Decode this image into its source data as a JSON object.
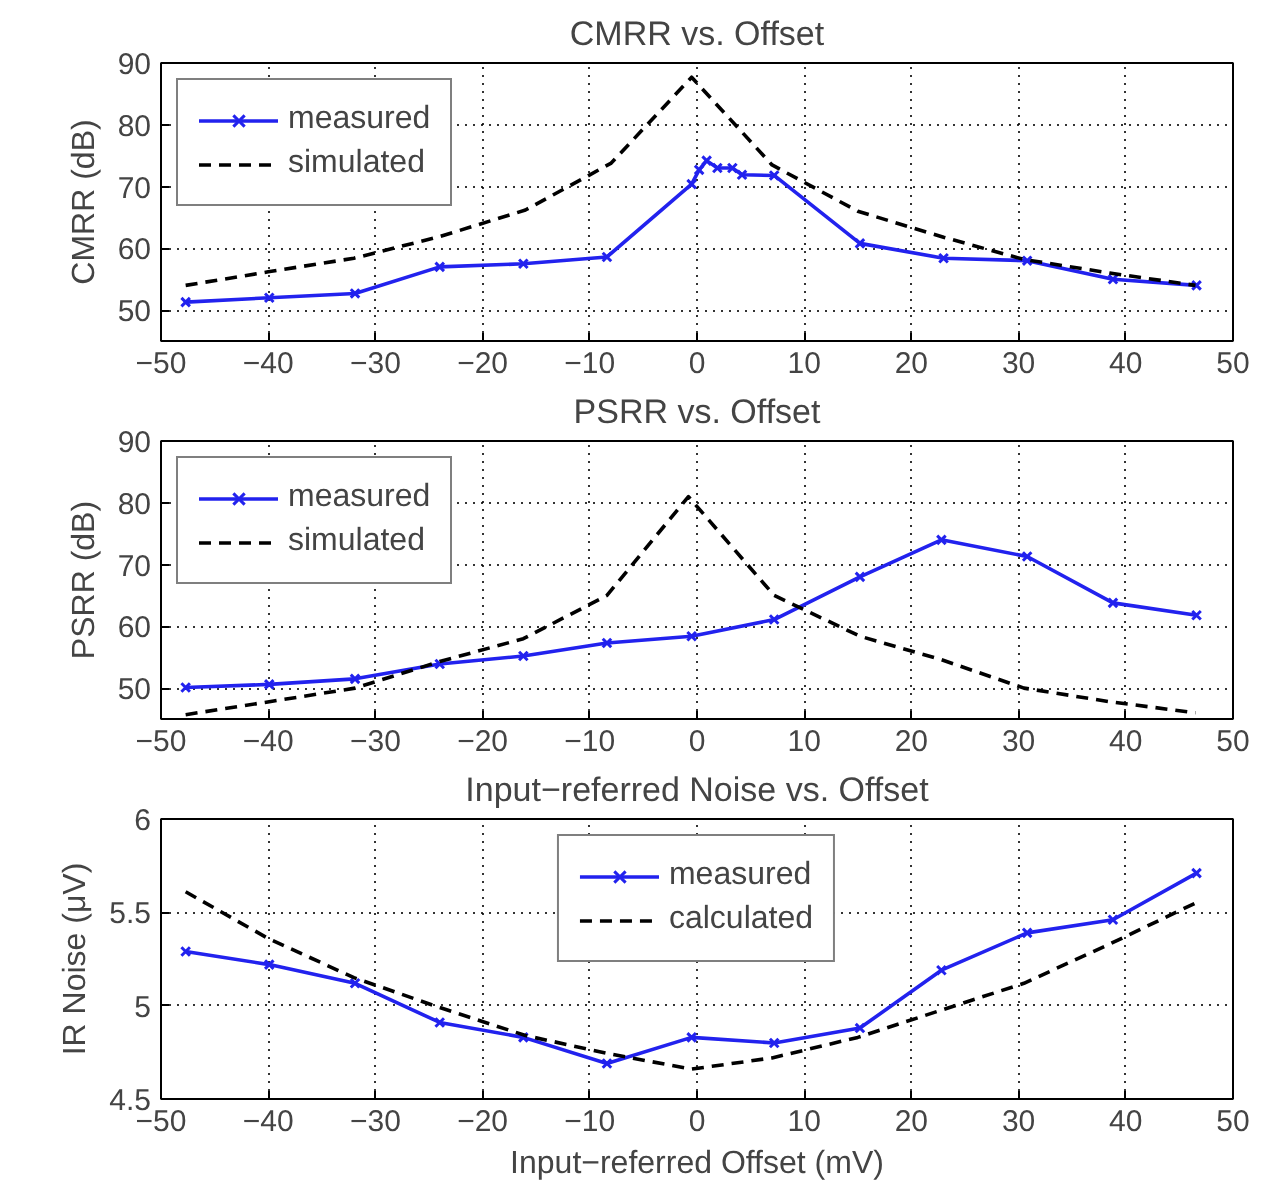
{
  "chart_data": [
    {
      "type": "line",
      "title": "CMRR vs. Offset",
      "ylabel": "CMRR (dB)",
      "xlim": [
        -50,
        50
      ],
      "xticks": [
        -50,
        -40,
        -30,
        -20,
        -10,
        0,
        10,
        20,
        30,
        40,
        50
      ],
      "ylim": [
        45,
        90
      ],
      "yticks": [
        50,
        60,
        70,
        80,
        90
      ],
      "grid": true,
      "legend": "top left",
      "series": [
        {
          "name": "measured",
          "color": "#2222ee",
          "marker": "cross",
          "line_style": "solid",
          "x": [
            -47.7,
            -39.9,
            -31.9,
            -24,
            -16.2,
            -8.4,
            -0.5,
            0.2,
            0.9,
            1.9,
            3.3,
            4.2,
            7.2,
            15.2,
            23,
            30.8,
            38.8,
            46.6
          ],
          "values": [
            51.3,
            52,
            52.7,
            57,
            57.5,
            58.6,
            70.4,
            72.7,
            74.2,
            73,
            73,
            71.9,
            71.8,
            60.8,
            58.4,
            58,
            55,
            54
          ]
        },
        {
          "name": "simulated",
          "color": "#000000",
          "marker": "none",
          "line_style": "dashed",
          "x": [
            -47.7,
            -40,
            -32,
            -24,
            -16,
            -8,
            -0.5,
            7,
            15,
            23,
            30.5,
            38.5,
            46.5
          ],
          "values": [
            54,
            56.2,
            58.4,
            61.9,
            66.2,
            73.8,
            87.7,
            73.5,
            66,
            61.8,
            58.2,
            56,
            54
          ]
        }
      ]
    },
    {
      "type": "line",
      "title": "PSRR vs. Offset",
      "ylabel": "PSRR (dB)",
      "xlim": [
        -50,
        50
      ],
      "xticks": [
        -50,
        -40,
        -30,
        -20,
        -10,
        0,
        10,
        20,
        30,
        40,
        50
      ],
      "ylim": [
        45,
        90
      ],
      "yticks": [
        50,
        60,
        70,
        80,
        90
      ],
      "grid": true,
      "legend": "top left",
      "series": [
        {
          "name": "measured",
          "color": "#2222ee",
          "marker": "cross",
          "line_style": "solid",
          "x": [
            -47.7,
            -39.9,
            -31.9,
            -24,
            -16.2,
            -8.4,
            -0.5,
            7.2,
            15.2,
            22.8,
            30.8,
            38.8,
            46.6
          ],
          "values": [
            50.1,
            50.6,
            51.5,
            53.9,
            55.2,
            57.3,
            58.4,
            61.1,
            68,
            74,
            71.3,
            63.8,
            61.8
          ]
        },
        {
          "name": "simulated",
          "color": "#000000",
          "marker": "none",
          "line_style": "dashed",
          "x": [
            -47.7,
            -39.9,
            -31.9,
            -24,
            -16.2,
            -8.4,
            -0.8,
            7.2,
            15.2,
            22.8,
            30.5,
            38.5,
            46.5
          ],
          "values": [
            45.7,
            47.8,
            50,
            54.3,
            58,
            65,
            81,
            65,
            58.4,
            54.6,
            50,
            47.8,
            46
          ]
        }
      ]
    },
    {
      "type": "line",
      "title": "Input−referred Noise vs. Offset",
      "xlabel": "Input−referred Offset (mV)",
      "ylabel": "IR Noise (μV)",
      "xlim": [
        -50,
        50
      ],
      "xticks": [
        -50,
        -40,
        -30,
        -20,
        -10,
        0,
        10,
        20,
        30,
        40,
        50
      ],
      "ylim": [
        4.5,
        6
      ],
      "yticks": [
        4.5,
        5,
        5.5,
        6
      ],
      "grid": true,
      "legend": "top",
      "series": [
        {
          "name": "measured",
          "color": "#2222ee",
          "marker": "cross",
          "line_style": "solid",
          "x": [
            -47.7,
            -39.9,
            -31.9,
            -24,
            -16.2,
            -8.4,
            -0.5,
            7.2,
            15.2,
            22.8,
            30.8,
            38.8,
            46.6
          ],
          "values": [
            5.29,
            5.22,
            5.12,
            4.91,
            4.83,
            4.69,
            4.83,
            4.8,
            4.88,
            5.19,
            5.39,
            5.46,
            5.71
          ]
        },
        {
          "name": "calculated",
          "color": "#000000",
          "marker": "none",
          "line_style": "dashed",
          "x": [
            -47.7,
            -40,
            -32,
            -24,
            -16,
            -8,
            -0.5,
            7,
            15,
            23,
            30.5,
            38.5,
            46.5
          ],
          "values": [
            5.61,
            5.36,
            5.15,
            4.99,
            4.84,
            4.74,
            4.66,
            4.72,
            4.83,
            4.98,
            5.12,
            5.33,
            5.55
          ]
        }
      ]
    }
  ]
}
